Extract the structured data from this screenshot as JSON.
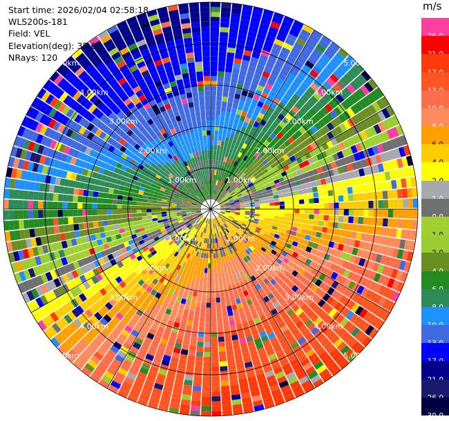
{
  "header": {
    "start_time": "Start time: 2026/02/04 02:58:18",
    "instrument": "WLS200s-181",
    "field": "Field: VEL",
    "elevation": "Elevation(deg): 35.00",
    "nrays": "NRays: 120"
  },
  "colorbar": {
    "unit": "m/s",
    "ticks": [
      {
        "label": "26.0",
        "color": "#ff3fa0"
      },
      {
        "label": "21.0",
        "color": "#ff0000"
      },
      {
        "label": "17.0",
        "color": "#ff3a0a"
      },
      {
        "label": "13.0",
        "color": "#ff5522"
      },
      {
        "label": "10.0",
        "color": "#ff6d4a"
      },
      {
        "label": "8.0",
        "color": "#ff8a5c"
      },
      {
        "label": "6.0",
        "color": "#ffa000"
      },
      {
        "label": "4.0",
        "color": "#ffcc00"
      },
      {
        "label": "2.0",
        "color": "#ffff00"
      },
      {
        "label": "1.0",
        "color": "#a8a8b0"
      },
      {
        "label": "0.0",
        "color": "#707070"
      },
      {
        "label": "-1.0",
        "color": "#a0d030"
      },
      {
        "label": "-2.0",
        "color": "#9acd32"
      },
      {
        "label": "-4.0",
        "color": "#6b8e23"
      },
      {
        "label": "-6.0",
        "color": "#228b22"
      },
      {
        "label": "-8.0",
        "color": "#2e8b57"
      },
      {
        "label": "-10.0",
        "color": "#1e90ff"
      },
      {
        "label": "-13.0",
        "color": "#4169e1"
      },
      {
        "label": "-17.0",
        "color": "#0000ff"
      },
      {
        "label": "-21.0",
        "color": "#00008b"
      },
      {
        "label": "-26.0",
        "color": "#191970"
      },
      {
        "label": "-30.0",
        "color": "#000040"
      }
    ]
  },
  "range_rings": [
    "1.00km",
    "2.00km",
    "3.00km",
    "4.00km",
    "5.00km"
  ]
}
